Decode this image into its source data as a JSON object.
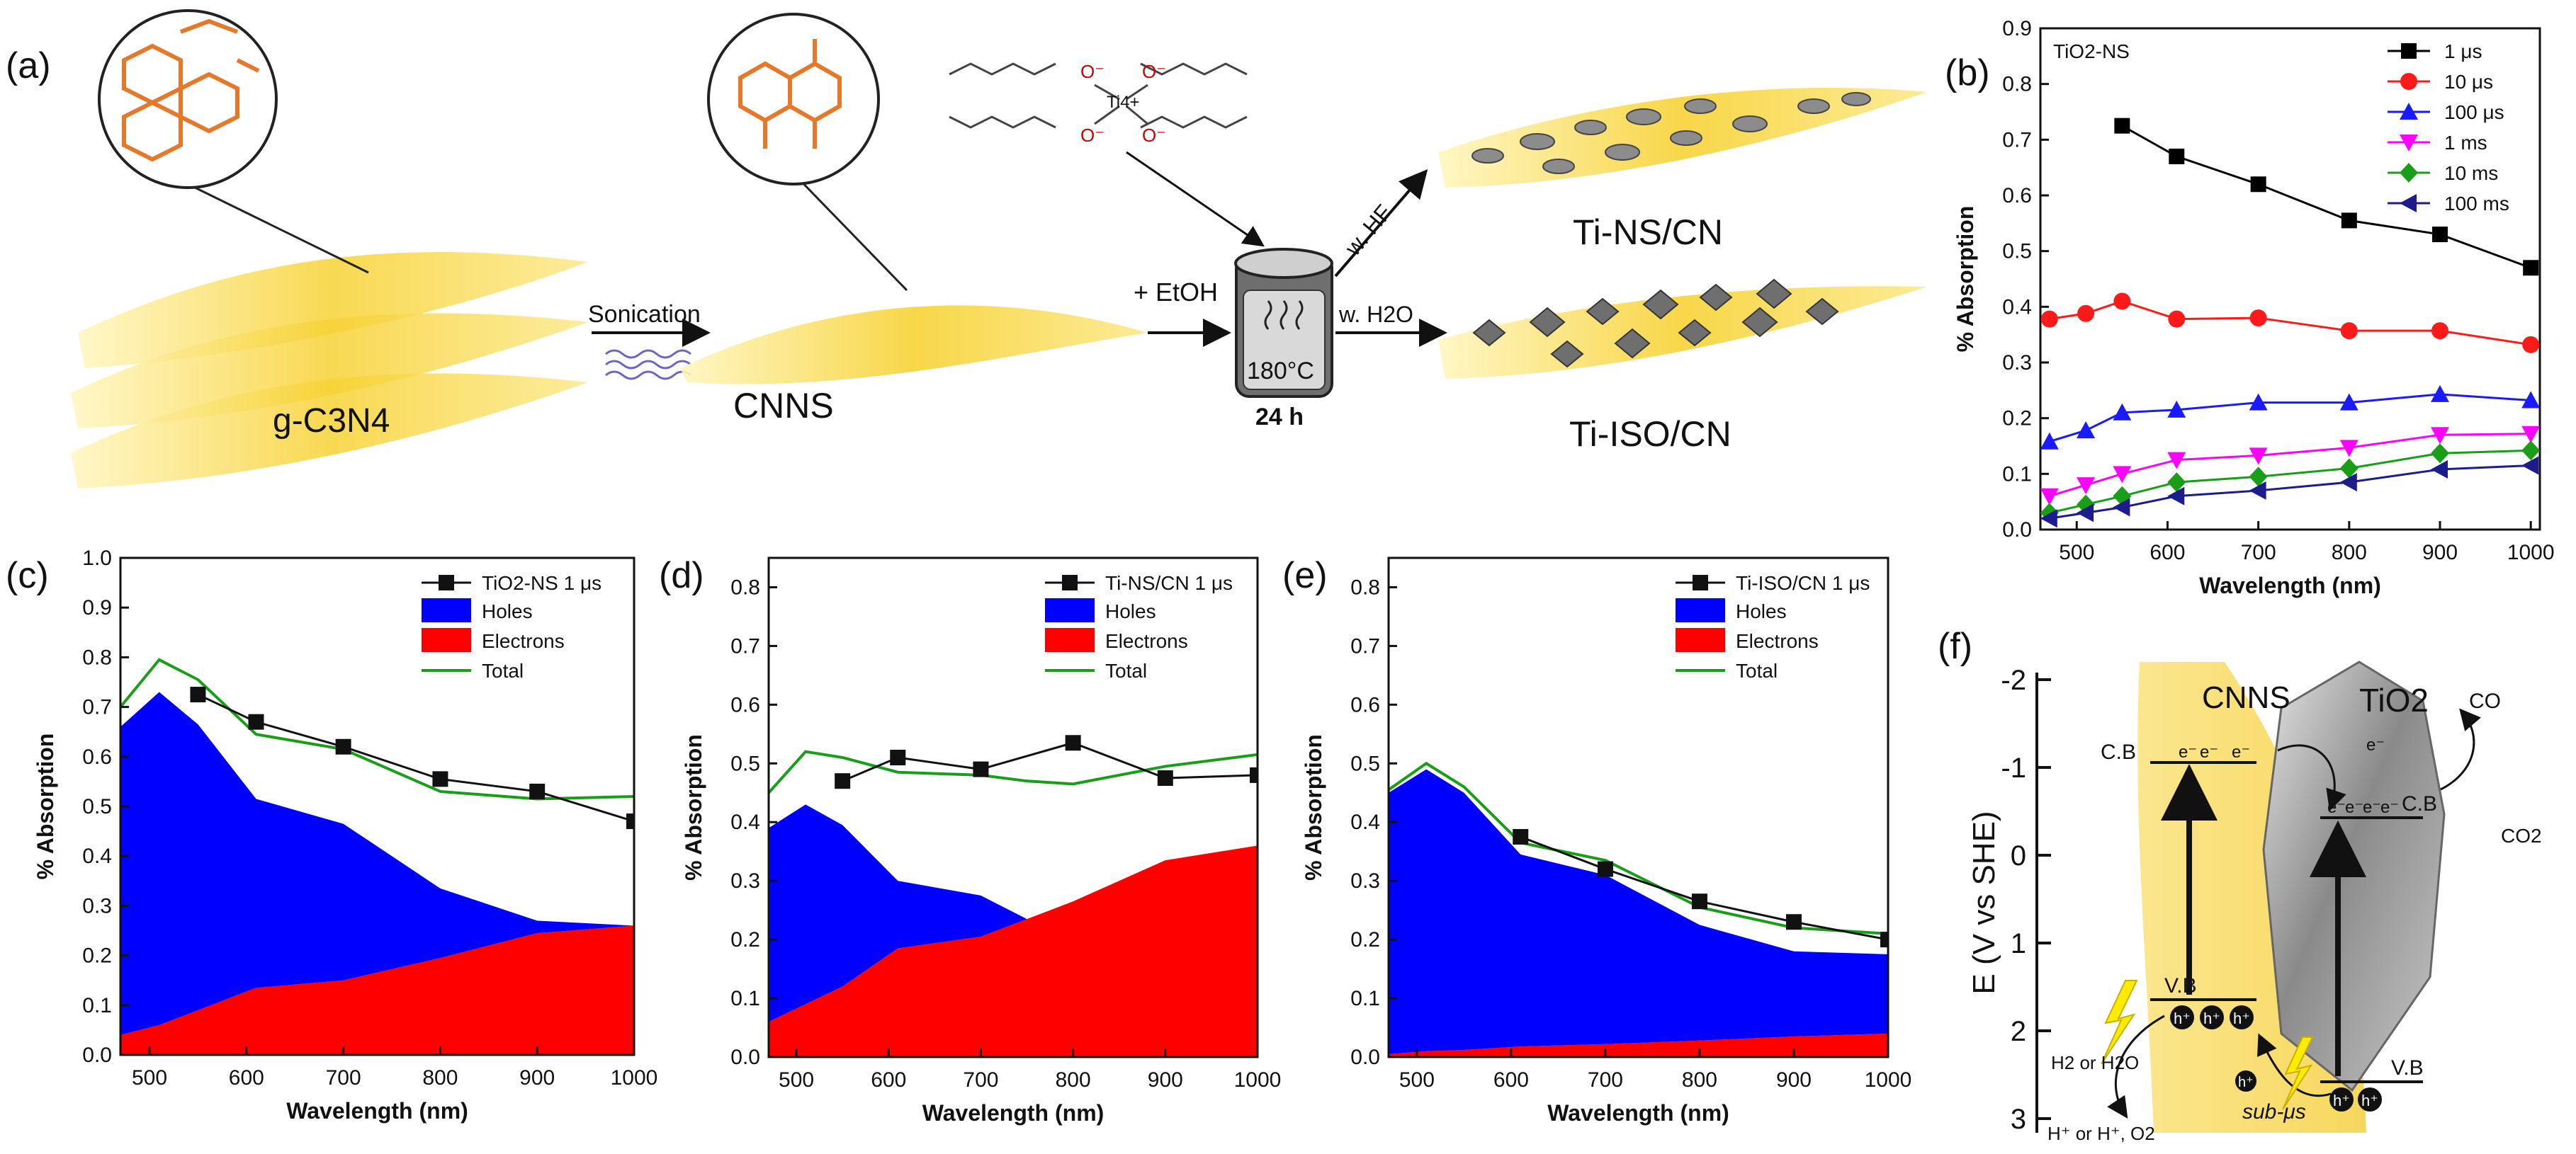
{
  "figure": {
    "panel_letters": {
      "a": "(a)",
      "b": "(b)",
      "c": "(c)",
      "d": "(d)",
      "e": "(e)",
      "f": "(f)"
    }
  },
  "scheme": {
    "sonication": "Sonication",
    "g_c3n4": "g-C3N4",
    "cnns": "CNNS",
    "etoh": "+ EtOH",
    "temp": "180°C",
    "time": "24 h",
    "ti_ion": "Ti4+",
    "o_minus": "O⁻",
    "route_hf": "w. HF",
    "route_h2o": "w. H2O",
    "product_ns": "Ti-NS/CN",
    "product_iso": "Ti-ISO/CN"
  },
  "band_diagram": {
    "ylabel": "E (V vs SHE)",
    "ticks": [
      "-2",
      "-1",
      "0",
      "1",
      "2",
      "3"
    ],
    "cnns_label": "CNNS",
    "tio2_label": "TiO2",
    "cb": "C.B",
    "vb": "V.B",
    "electron": "e⁻",
    "hole": "h⁺",
    "co": "CO",
    "co2": "CO2",
    "h2_or_h2o": "H2 or H2O",
    "h_plus_products": "H⁺ or H⁺, O2",
    "sub_us": "sub-μs"
  },
  "chart_data": [
    {
      "id": "b",
      "type": "line",
      "title": "TiO2-NS",
      "xlabel": "Wavelength (nm)",
      "ylabel": "% Absorption",
      "xlim": [
        460,
        1010
      ],
      "ylim": [
        0.0,
        0.9
      ],
      "xticks": [
        500,
        600,
        700,
        800,
        900,
        1000
      ],
      "yticks": [
        0.0,
        0.1,
        0.2,
        0.3,
        0.4,
        0.5,
        0.6,
        0.7,
        0.8,
        0.9
      ],
      "legend_position": "top-right",
      "series": [
        {
          "name": "1 μs",
          "color": "#000000",
          "marker": "square",
          "x": [
            550,
            610,
            700,
            800,
            900,
            1000
          ],
          "y": [
            0.725,
            0.67,
            0.62,
            0.555,
            0.53,
            0.47
          ]
        },
        {
          "name": "10 μs",
          "color": "#ff1a1a",
          "marker": "circle",
          "x": [
            470,
            510,
            550,
            610,
            700,
            800,
            900,
            1000
          ],
          "y": [
            0.378,
            0.388,
            0.41,
            0.378,
            0.38,
            0.357,
            0.357,
            0.332
          ]
        },
        {
          "name": "100 μs",
          "color": "#1a1aff",
          "marker": "triangle-up",
          "x": [
            470,
            510,
            550,
            610,
            700,
            800,
            900,
            1000
          ],
          "y": [
            0.158,
            0.178,
            0.21,
            0.215,
            0.228,
            0.228,
            0.243,
            0.232
          ]
        },
        {
          "name": "1 ms",
          "color": "#ff00ff",
          "marker": "triangle-down",
          "x": [
            470,
            510,
            550,
            610,
            700,
            800,
            900,
            1000
          ],
          "y": [
            0.06,
            0.08,
            0.1,
            0.125,
            0.133,
            0.147,
            0.17,
            0.172
          ]
        },
        {
          "name": "10 ms",
          "color": "#1a9e1a",
          "marker": "diamond",
          "x": [
            470,
            510,
            550,
            610,
            700,
            800,
            900,
            1000
          ],
          "y": [
            0.03,
            0.045,
            0.06,
            0.085,
            0.095,
            0.11,
            0.137,
            0.142
          ]
        },
        {
          "name": "100 ms",
          "color": "#1c1c8c",
          "marker": "triangle-left",
          "x": [
            470,
            510,
            550,
            610,
            700,
            800,
            900,
            1000
          ],
          "y": [
            0.02,
            0.03,
            0.04,
            0.06,
            0.07,
            0.085,
            0.108,
            0.115
          ]
        }
      ]
    },
    {
      "id": "c",
      "type": "area",
      "xlabel": "Wavelength (nm)",
      "ylabel": "% Absorption",
      "xlim": [
        470,
        1000
      ],
      "ylim": [
        0.0,
        1.0
      ],
      "xticks": [
        500,
        600,
        700,
        800,
        900,
        1000
      ],
      "yticks": [
        0.0,
        0.1,
        0.2,
        0.3,
        0.4,
        0.5,
        0.6,
        0.7,
        0.8,
        0.9,
        1.0
      ],
      "legend_position": "top-right",
      "legend": {
        "measured": "TiO2-NS 1 μs",
        "holes": "Holes",
        "electrons": "Electrons",
        "total": "Total"
      },
      "area_x": [
        470,
        510,
        550,
        610,
        700,
        800,
        900,
        1000
      ],
      "electrons": [
        0.04,
        0.06,
        0.09,
        0.135,
        0.15,
        0.195,
        0.245,
        0.26
      ],
      "holes_top": [
        0.66,
        0.73,
        0.665,
        0.515,
        0.465,
        0.335,
        0.27,
        0.26
      ],
      "total": [
        0.7,
        0.795,
        0.755,
        0.645,
        0.615,
        0.53,
        0.515,
        0.52
      ],
      "measured_x": [
        550,
        610,
        700,
        800,
        900,
        1000
      ],
      "measured_y": [
        0.725,
        0.67,
        0.62,
        0.555,
        0.53,
        0.47
      ]
    },
    {
      "id": "d",
      "type": "area",
      "xlabel": "Wavelength (nm)",
      "ylabel": "% Absorption",
      "xlim": [
        470,
        1000
      ],
      "ylim": [
        0.0,
        0.85
      ],
      "xticks": [
        500,
        600,
        700,
        800,
        900,
        1000
      ],
      "yticks": [
        0.0,
        0.1,
        0.2,
        0.3,
        0.4,
        0.5,
        0.6,
        0.7,
        0.8
      ],
      "legend_position": "top-right",
      "legend": {
        "measured": "Ti-NS/CN 1 μs",
        "holes": "Holes",
        "electrons": "Electrons",
        "total": "Total"
      },
      "area_x": [
        470,
        510,
        550,
        610,
        700,
        750,
        800,
        900,
        1000
      ],
      "electrons": [
        0.06,
        0.09,
        0.12,
        0.185,
        0.205,
        0.235,
        0.265,
        0.335,
        0.36
      ],
      "holes_top": [
        0.39,
        0.43,
        0.395,
        0.3,
        0.275,
        0.235,
        0.265,
        0.335,
        0.36
      ],
      "total": [
        0.45,
        0.52,
        0.51,
        0.485,
        0.48,
        0.47,
        0.465,
        0.495,
        0.515
      ],
      "measured_x": [
        550,
        610,
        700,
        800,
        900,
        1000
      ],
      "measured_y": [
        0.47,
        0.51,
        0.49,
        0.535,
        0.475,
        0.48
      ]
    },
    {
      "id": "e",
      "type": "area",
      "xlabel": "Wavelength (nm)",
      "ylabel": "% Absorption",
      "xlim": [
        470,
        1000
      ],
      "ylim": [
        0.0,
        0.85
      ],
      "xticks": [
        500,
        600,
        700,
        800,
        900,
        1000
      ],
      "yticks": [
        0.0,
        0.1,
        0.2,
        0.3,
        0.4,
        0.5,
        0.6,
        0.7,
        0.8
      ],
      "legend_position": "top-right",
      "legend": {
        "measured": "Ti-ISO/CN 1 μs",
        "holes": "Holes",
        "electrons": "Electrons",
        "total": "Total"
      },
      "area_x": [
        470,
        510,
        550,
        610,
        700,
        800,
        900,
        1000
      ],
      "electrons": [
        0.005,
        0.01,
        0.012,
        0.018,
        0.022,
        0.028,
        0.035,
        0.04
      ],
      "holes_top": [
        0.45,
        0.49,
        0.45,
        0.345,
        0.31,
        0.225,
        0.18,
        0.175
      ],
      "total": [
        0.455,
        0.5,
        0.46,
        0.365,
        0.335,
        0.255,
        0.22,
        0.21
      ],
      "measured_x": [
        610,
        700,
        800,
        900,
        1000
      ],
      "measured_y": [
        0.375,
        0.32,
        0.265,
        0.23,
        0.2
      ]
    }
  ]
}
